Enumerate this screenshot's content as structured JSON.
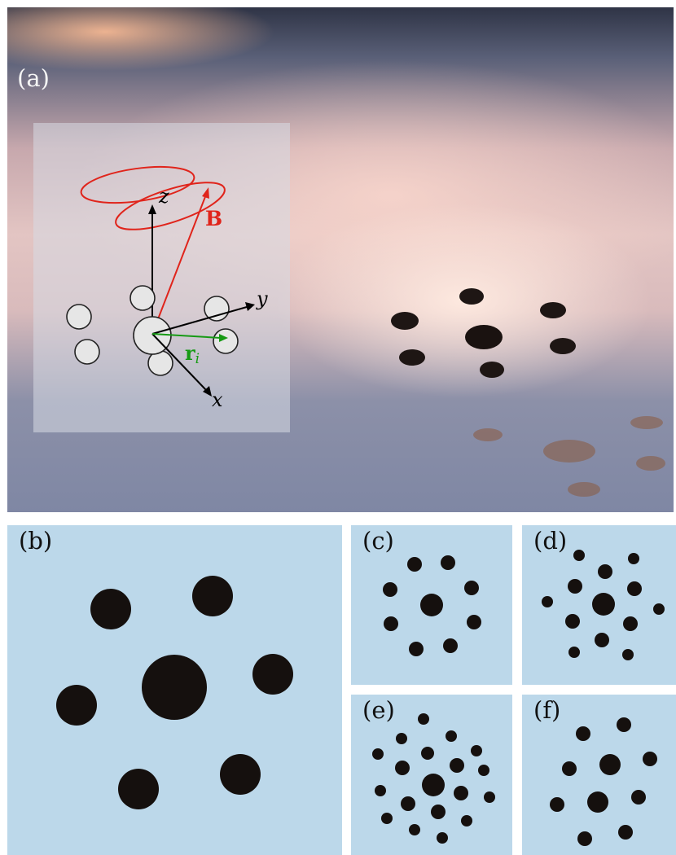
{
  "panels": {
    "a": {
      "label": "(a)"
    },
    "b": {
      "label": "(b)"
    },
    "c": {
      "label": "(c)"
    },
    "d": {
      "label": "(d)"
    },
    "e": {
      "label": "(e)"
    },
    "f": {
      "label": "(f)"
    }
  },
  "schematic": {
    "z": "z",
    "y": "y",
    "x": "x",
    "B": "B",
    "r": "r",
    "r_sub": "i"
  },
  "colors": {
    "field": "#e0241b",
    "position_vector": "#169a14",
    "axes": "#000000",
    "background_blue": "#bcd8ea"
  }
}
